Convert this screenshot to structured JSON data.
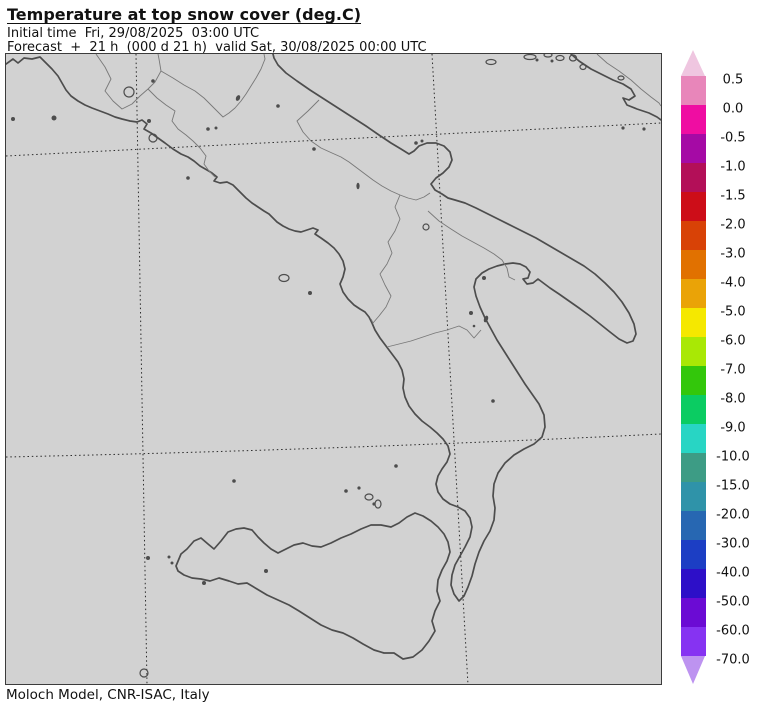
{
  "header": {
    "title": "Temperature at top snow cover (deg.C)",
    "line2": "Initial time  Fri, 29/08/2025  03:00 UTC",
    "line3": "Forecast  +  21 h  (000 d 21 h)  valid Sat, 30/08/2025 00:00 UTC"
  },
  "footer": {
    "credit": "Moloch Model, CNR-ISAC, Italy"
  },
  "colorbar": {
    "unit": "deg.C",
    "labels": [
      "0.5",
      "0.0",
      "-0.5",
      "-1.0",
      "-1.5",
      "-2.0",
      "-3.0",
      "-4.0",
      "-5.0",
      "-6.0",
      "-7.0",
      "-8.0",
      "-9.0",
      "-10.0",
      "-15.0",
      "-20.0",
      "-30.0",
      "-40.0",
      "-50.0",
      "-60.0",
      "-70.0"
    ],
    "segment_colors": [
      "#e886ba",
      "#ef0da2",
      "#a50aa5",
      "#b30f58",
      "#cd0d18",
      "#d84206",
      "#e17100",
      "#eaa307",
      "#f5e800",
      "#a9e805",
      "#33c70b",
      "#0bcc62",
      "#28d5c4",
      "#3d9c85",
      "#2f93a9",
      "#2767b2",
      "#1c3ec4",
      "#2d0fc8",
      "#6b0bd4",
      "#8633f2"
    ],
    "arrow_top_color": "#efc6e0",
    "arrow_bottom_color": "#bd93f0"
  },
  "map": {
    "background": "#d2d2d2",
    "coast_color": "#4d4d4d",
    "region_border_color": "#787878",
    "grid_color": "#2b2b2b",
    "region": "Southern Italy and Sicily"
  }
}
